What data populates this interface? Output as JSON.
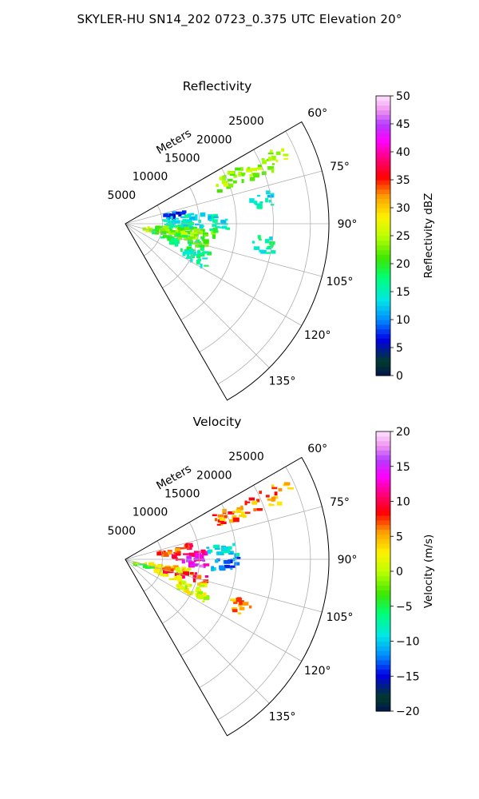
{
  "figure_title": "SKYLER-HU  SN14_202  0723_0.375 UTC Elevation 20°",
  "chart_data": [
    {
      "type": "heatmap",
      "subtype": "polar-sector",
      "title": "Reflectivity",
      "radial_label": "Meters",
      "radial_ticks": [
        5000,
        10000,
        15000,
        20000,
        25000
      ],
      "radial_tick_labels": [
        "5000",
        "10000",
        "15000",
        "20000",
        "25000"
      ],
      "radial_range": [
        0,
        27500
      ],
      "angle_range_deg": [
        60,
        150
      ],
      "angle_ticks_deg": [
        60,
        75,
        90,
        105,
        120,
        135
      ],
      "angle_tick_labels": [
        "60°",
        "75°",
        "90°",
        "105°",
        "120°",
        "135°"
      ],
      "grid": true,
      "colorbar": {
        "label": "Reflectivity dBZ",
        "range": [
          0,
          50
        ],
        "ticks": [
          0,
          5,
          10,
          15,
          20,
          25,
          30,
          35,
          40,
          45,
          50
        ],
        "tick_labels": [
          "0",
          "5",
          "10",
          "15",
          "20",
          "25",
          "30",
          "35",
          "40",
          "45",
          "50"
        ]
      },
      "echo_regions": [
        {
          "az": 78,
          "r0": 5000,
          "r1": 8000,
          "value": 8
        },
        {
          "az": 84,
          "r0": 5000,
          "r1": 12000,
          "value": 14
        },
        {
          "az": 90,
          "r0": 5000,
          "r1": 14000,
          "value": 15
        },
        {
          "az": 96,
          "r0": 4000,
          "r1": 12000,
          "value": 22
        },
        {
          "az": 100,
          "r0": 2000,
          "r1": 10000,
          "value": 24
        },
        {
          "az": 104,
          "r0": 3000,
          "r1": 11000,
          "value": 21
        },
        {
          "az": 110,
          "r0": 5000,
          "r1": 12000,
          "value": 18
        },
        {
          "az": 116,
          "r0": 8000,
          "r1": 12000,
          "value": 16
        },
        {
          "az": 66,
          "r0": 13000,
          "r1": 24000,
          "value": 24
        },
        {
          "az": 80,
          "r0": 17000,
          "r1": 20000,
          "value": 14
        },
        {
          "az": 98,
          "r0": 17000,
          "r1": 20000,
          "value": 16
        }
      ]
    },
    {
      "type": "heatmap",
      "subtype": "polar-sector",
      "title": "Velocity",
      "radial_label": "Meters",
      "radial_ticks": [
        5000,
        10000,
        15000,
        20000,
        25000
      ],
      "radial_tick_labels": [
        "5000",
        "10000",
        "15000",
        "20000",
        "25000"
      ],
      "radial_range": [
        0,
        27500
      ],
      "angle_range_deg": [
        60,
        150
      ],
      "angle_ticks_deg": [
        60,
        75,
        90,
        105,
        120,
        135
      ],
      "angle_tick_labels": [
        "60°",
        "75°",
        "90°",
        "105°",
        "120°",
        "135°"
      ],
      "grid": true,
      "colorbar": {
        "label": "Velocity (m/s)",
        "range": [
          -20,
          20
        ],
        "ticks": [
          -20,
          -15,
          -10,
          -5,
          0,
          5,
          10,
          15,
          20
        ],
        "tick_labels": [
          "−20",
          "−15",
          "−10",
          "−5",
          "0",
          "5",
          "10",
          "15",
          "20"
        ]
      },
      "echo_regions": [
        {
          "az": 78,
          "r0": 4000,
          "r1": 9000,
          "value": 8
        },
        {
          "az": 86,
          "r0": 6000,
          "r1": 11000,
          "value": 12
        },
        {
          "az": 92,
          "r0": 8000,
          "r1": 11000,
          "value": 15
        },
        {
          "az": 84,
          "r0": 11000,
          "r1": 15000,
          "value": -9
        },
        {
          "az": 92,
          "r0": 11000,
          "r1": 15000,
          "value": -12
        },
        {
          "az": 100,
          "r0": 2000,
          "r1": 9000,
          "value": 3
        },
        {
          "az": 104,
          "r0": 5000,
          "r1": 11000,
          "value": 9
        },
        {
          "az": 110,
          "r0": 4000,
          "r1": 11000,
          "value": 2
        },
        {
          "az": 116,
          "r0": 7000,
          "r1": 12000,
          "value": 1
        },
        {
          "az": 108,
          "r0": 1000,
          "r1": 4000,
          "value": -3
        },
        {
          "az": 66,
          "r0": 13000,
          "r1": 24000,
          "value": 6
        },
        {
          "az": 112,
          "r0": 15000,
          "r1": 18000,
          "value": 5
        }
      ]
    }
  ]
}
